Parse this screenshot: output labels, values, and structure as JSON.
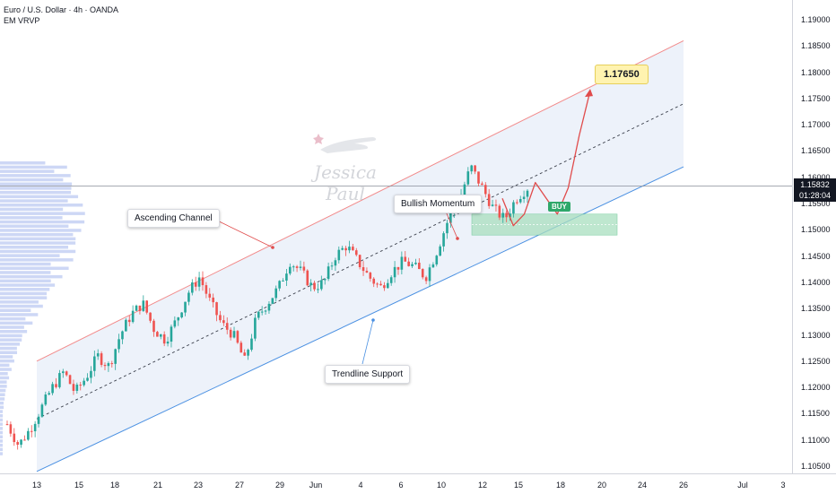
{
  "header": {
    "symbol_line": "Euro / U.S. Dollar · 4h · OANDA",
    "indicator": "EM VRVP"
  },
  "watermark": {
    "text": "Jessica Paul"
  },
  "current_price": {
    "price": "1.15832",
    "countdown": "01:28:04"
  },
  "annotations": {
    "ascending_channel": "Ascending Channel",
    "bullish_momentum": "Bullish Momentum",
    "trendline_support": "Trendline Support",
    "target": "1.17650",
    "buy": "BUY"
  },
  "colors": {
    "bull": "#26a69a",
    "bear": "#ef5350",
    "channel_upper": "#f28b8b",
    "channel_lower": "#4a90e2",
    "channel_fill": "#dfe7f6",
    "buy_zone": "#a9dfbf",
    "projection": "#e04b4b",
    "volume_profile": "#90a7e8"
  },
  "chart_data": {
    "type": "candlestick",
    "symbol": "EUR/USD",
    "timeframe": "4h",
    "price_axis": {
      "ticks": [
        "1.19000",
        "1.18500",
        "1.18000",
        "1.17500",
        "1.17000",
        "1.16500",
        "1.16000",
        "1.15500",
        "1.15000",
        "1.14500",
        "1.14000",
        "1.13500",
        "1.13000",
        "1.12500",
        "1.12000",
        "1.11500",
        "1.11000",
        "1.10500"
      ],
      "range": [
        1.104,
        1.1935
      ]
    },
    "time_axis": {
      "labels": [
        "13",
        "15",
        "18",
        "21",
        "23",
        "27",
        "29",
        "Jun",
        "4",
        "6",
        "10",
        "12",
        "15",
        "18",
        "20",
        "24",
        "26",
        "Jul",
        "3"
      ]
    },
    "channel": {
      "upper": [
        [
          "13",
          1.125
        ],
        [
          "26",
          1.186
        ]
      ],
      "lower": [
        [
          "13",
          1.104
        ],
        [
          "26",
          1.162
        ]
      ],
      "midline": [
        [
          "13",
          1.114
        ],
        [
          "26",
          1.174
        ]
      ]
    },
    "buy_zone": {
      "from": "12",
      "to": "22",
      "low": 1.149,
      "high": 1.153
    },
    "target_price": 1.1765,
    "current_price": 1.15832,
    "projection_path": [
      1.156,
      1.1508,
      1.153,
      1.159,
      1.156,
      1.153,
      1.158,
      1.168,
      1.1765
    ],
    "ohlc_close_path": [
      1.113,
      1.109,
      1.112,
      1.116,
      1.12,
      1.123,
      1.119,
      1.122,
      1.126,
      1.124,
      1.13,
      1.134,
      1.136,
      1.131,
      1.129,
      1.133,
      1.138,
      1.141,
      1.136,
      1.132,
      1.13,
      1.125,
      1.133,
      1.136,
      1.139,
      1.144,
      1.142,
      1.139,
      1.14,
      1.145,
      1.147,
      1.144,
      1.141,
      1.139,
      1.142,
      1.144,
      1.143,
      1.141,
      1.146,
      1.152,
      1.156,
      1.162,
      1.158,
      1.154,
      1.152,
      1.156,
      1.158
    ]
  }
}
